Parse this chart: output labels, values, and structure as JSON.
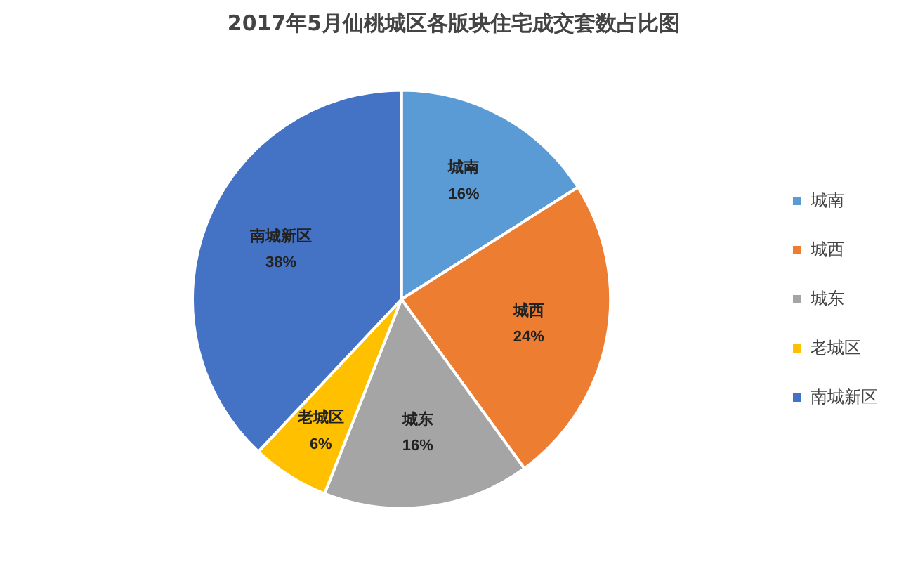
{
  "chart_data": {
    "type": "pie",
    "title": "2017年5月仙桃城区各版块住宅成交套数占比图",
    "categories": [
      "城南",
      "城西",
      "城东",
      "老城区",
      "南城新区"
    ],
    "values": [
      16,
      24,
      16,
      6,
      38
    ],
    "value_labels": [
      "16%",
      "24%",
      "16%",
      "6%",
      "38%"
    ],
    "colors": [
      "#5b9bd5",
      "#ed7d31",
      "#a5a5a5",
      "#ffc000",
      "#4472c4"
    ],
    "legend": "right"
  }
}
